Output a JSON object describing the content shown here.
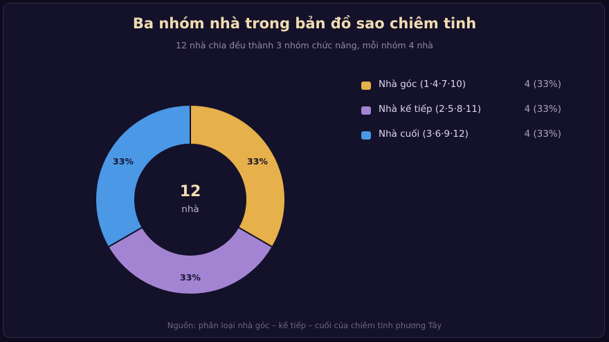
{
  "header": {
    "title": "Ba nhóm nhà trong bản đồ sao chiêm tinh",
    "subtitle": "12 nhà chia đều thành 3 nhóm chức năng, mỗi nhóm 4 nhà"
  },
  "footer": {
    "source": "Nguồn: phân loại nhà góc – kế tiếp – cuối của chiêm tinh phương Tây"
  },
  "center": {
    "value": "12",
    "unit": "nhà"
  },
  "chart_data": {
    "type": "pie",
    "variant": "donut",
    "categories": [
      "Nhà góc (1·4·7·10)",
      "Nhà kế tiếp (2·5·8·11)",
      "Nhà cuối (3·6·9·12)"
    ],
    "values": [
      4,
      4,
      4
    ],
    "percent_labels": [
      "33%",
      "33%",
      "33%"
    ],
    "legend_values": [
      "4 (33%)",
      "4 (33%)",
      "4 (33%)"
    ],
    "colors": [
      "#e6b04a",
      "#a384d2",
      "#4a98e6"
    ],
    "legend_position": "right",
    "start_angle": "top, clockwise"
  }
}
